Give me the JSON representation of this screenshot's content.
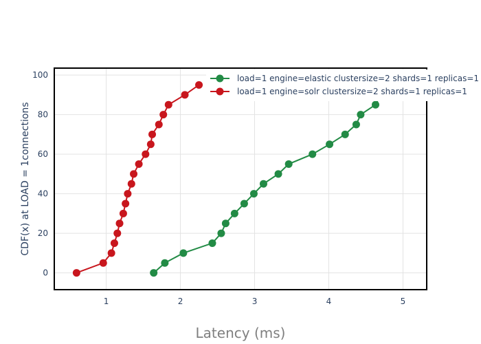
{
  "chart_data": {
    "type": "line",
    "xlabel": "Latency (ms)",
    "ylabel": "CDF(x) at LOAD = 1connections",
    "xlim": [
      0.3,
      5.32
    ],
    "ylim": [
      -8.5,
      103.5
    ],
    "x_ticks": [
      "1",
      "2",
      "3",
      "4",
      "5"
    ],
    "x_tick_values": [
      1,
      2,
      3,
      4,
      5
    ],
    "y_ticks": [
      "0",
      "20",
      "40",
      "60",
      "80",
      "100"
    ],
    "y_tick_values": [
      0,
      20,
      40,
      60,
      80,
      100
    ],
    "grid": true,
    "legend_position": "top-right",
    "series": [
      {
        "name": "load=1 engine=elastic clustersize=2 shards=1 replicas=1",
        "color": "#228b45",
        "x": [
          1.64,
          1.79,
          2.04,
          2.43,
          2.55,
          2.61,
          2.73,
          2.86,
          2.99,
          3.12,
          3.32,
          3.46,
          3.78,
          4.01,
          4.22,
          4.37,
          4.43,
          4.63,
          4.7
        ],
        "y": [
          0,
          5,
          10,
          15,
          20,
          25,
          30,
          35,
          40,
          45,
          50,
          55,
          60,
          65,
          70,
          75,
          80,
          85,
          90
        ]
      },
      {
        "name": "load=1 engine=solr clustersize=2 shards=1 replicas=1",
        "color": "#c8161d",
        "x": [
          0.6,
          0.96,
          1.07,
          1.11,
          1.15,
          1.18,
          1.23,
          1.26,
          1.29,
          1.34,
          1.37,
          1.44,
          1.53,
          1.6,
          1.62,
          1.71,
          1.77,
          1.84,
          2.06,
          2.25
        ],
        "y": [
          0,
          5,
          10,
          15,
          20,
          25,
          30,
          35,
          40,
          45,
          50,
          55,
          60,
          65,
          70,
          75,
          80,
          85,
          90,
          95
        ]
      }
    ]
  }
}
